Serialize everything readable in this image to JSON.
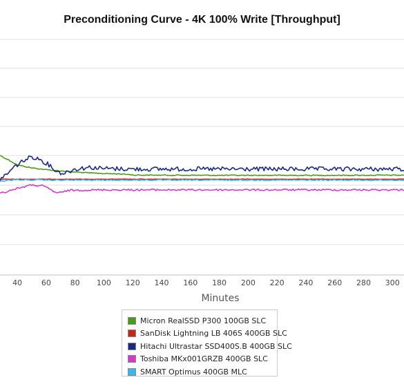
{
  "chart_data": {
    "type": "line",
    "title": "Preconditioning Curve - 4K 100% Write [Throughput]",
    "xlabel": "Minutes",
    "ylabel": "",
    "x_ticks": [
      40,
      60,
      80,
      100,
      120,
      140,
      160,
      180,
      200,
      220,
      240,
      260,
      280,
      300
    ],
    "xlim": [
      28,
      308
    ],
    "grid": "horizontal",
    "legend_position": "bottom-center",
    "series": [
      {
        "name": "Micron RealSSD P300 100GB SLC",
        "color": "#4a9a1a",
        "points": [
          [
            28,
            0.0
          ],
          [
            35,
            0.18
          ],
          [
            40,
            0.32
          ],
          [
            50,
            0.42
          ],
          [
            60,
            0.48
          ],
          [
            70,
            0.52
          ],
          [
            80,
            0.56
          ],
          [
            90,
            0.59
          ],
          [
            100,
            0.61
          ],
          [
            110,
            0.62
          ],
          [
            118,
            0.64
          ],
          [
            120,
            0.66
          ],
          [
            140,
            0.665
          ],
          [
            180,
            0.67
          ],
          [
            220,
            0.67
          ],
          [
            260,
            0.67
          ],
          [
            300,
            0.665
          ],
          [
            308,
            0.665
          ]
        ],
        "noise": 0.015
      },
      {
        "name": "SanDisk Lightning LB 406S 400GB SLC",
        "color": "#c0281c",
        "points": [
          [
            28,
            0.8
          ],
          [
            40,
            0.8
          ],
          [
            60,
            0.8
          ],
          [
            100,
            0.8
          ],
          [
            150,
            0.8
          ],
          [
            200,
            0.8
          ],
          [
            250,
            0.8
          ],
          [
            308,
            0.8
          ]
        ],
        "noise": 0.006
      },
      {
        "name": "Hitachi Ultrastar SSD400S.B 400GB SLC",
        "color": "#1a2a80",
        "points": [
          [
            28,
            0.8
          ],
          [
            33,
            0.62
          ],
          [
            38,
            0.38
          ],
          [
            44,
            0.18
          ],
          [
            50,
            0.04
          ],
          [
            56,
            0.14
          ],
          [
            62,
            0.32
          ],
          [
            68,
            0.56
          ],
          [
            72,
            0.6
          ],
          [
            80,
            0.46
          ],
          [
            90,
            0.4
          ],
          [
            100,
            0.44
          ],
          [
            120,
            0.46
          ],
          [
            160,
            0.46
          ],
          [
            200,
            0.46
          ],
          [
            240,
            0.46
          ],
          [
            280,
            0.46
          ],
          [
            308,
            0.46
          ]
        ],
        "noise": 0.075
      },
      {
        "name": "Toshiba MKx001GRZB 400GB SLC",
        "color": "#d23bc8",
        "points": [
          [
            28,
            1.28
          ],
          [
            35,
            1.18
          ],
          [
            42,
            1.08
          ],
          [
            50,
            1.0
          ],
          [
            57,
            1.02
          ],
          [
            62,
            1.12
          ],
          [
            66,
            1.24
          ],
          [
            70,
            1.26
          ],
          [
            75,
            1.18
          ],
          [
            80,
            1.17
          ],
          [
            100,
            1.16
          ],
          [
            140,
            1.16
          ],
          [
            180,
            1.16
          ],
          [
            220,
            1.16
          ],
          [
            260,
            1.16
          ],
          [
            308,
            1.16
          ]
        ],
        "noise": 0.03
      },
      {
        "name": "SMART Optimus 400GB MLC",
        "color": "#3cb6ea",
        "points": [
          [
            28,
            0.86
          ],
          [
            40,
            0.82
          ],
          [
            60,
            0.83
          ],
          [
            100,
            0.83
          ],
          [
            160,
            0.83
          ],
          [
            220,
            0.83
          ],
          [
            280,
            0.83
          ],
          [
            308,
            0.83
          ]
        ],
        "noise": 0.02
      }
    ]
  },
  "colors": {
    "gridline": "#e2e2e2",
    "border": "#bdbdbd"
  }
}
